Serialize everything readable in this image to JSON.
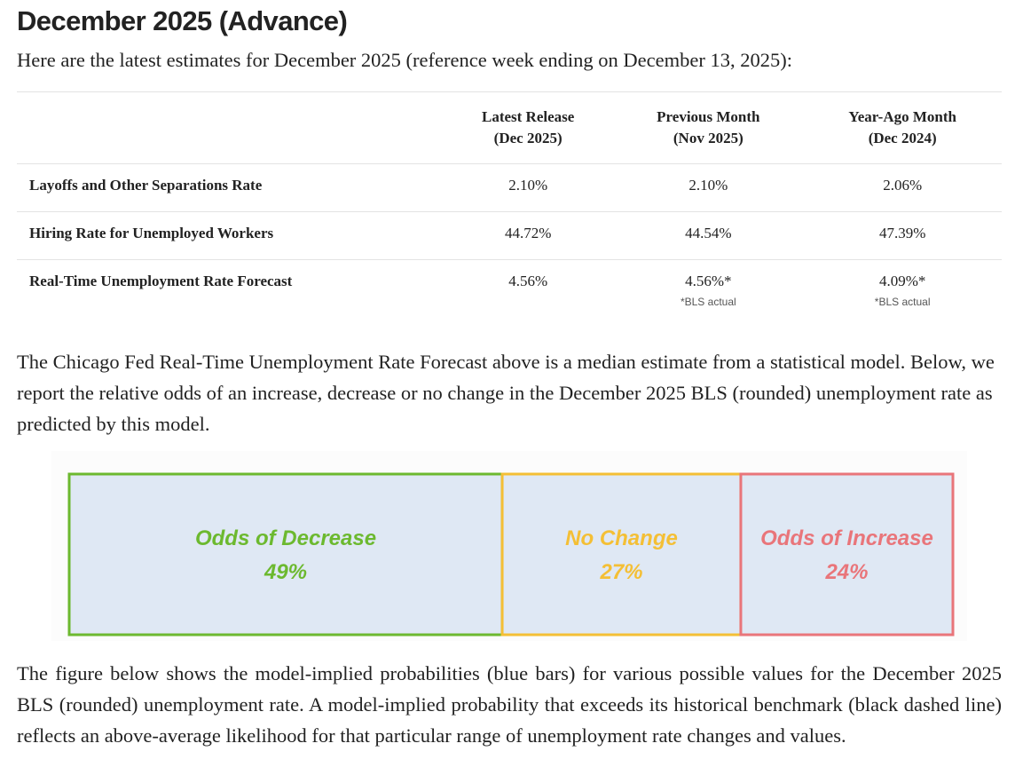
{
  "header": {
    "title": "December 2025 (Advance)",
    "subtitle": "Here are the latest estimates for December 2025 (reference week ending on December 13, 2025):"
  },
  "table": {
    "headers": [
      [
        "Latest Release",
        "(Dec 2025)"
      ],
      [
        "Previous Month",
        "(Nov 2025)"
      ],
      [
        "Year-Ago Month",
        "(Dec 2024)"
      ]
    ],
    "rows": [
      {
        "label": "Layoffs and Other Separations Rate",
        "cells": [
          {
            "text": "2.10%"
          },
          {
            "text": "2.10%"
          },
          {
            "text": "2.06%"
          }
        ]
      },
      {
        "label": "Hiring Rate for Unemployed Workers",
        "cells": [
          {
            "text": "44.72%"
          },
          {
            "text": "44.54%"
          },
          {
            "text": "47.39%"
          }
        ]
      },
      {
        "label": "Real-Time Unemployment Rate Forecast",
        "cells": [
          {
            "text": "4.56%"
          },
          {
            "text": "4.56%*",
            "note": "*BLS actual"
          },
          {
            "text": "4.09%*",
            "note": "*BLS actual"
          }
        ]
      }
    ]
  },
  "paragraphs": [
    "The Chicago Fed Real-Time Unemployment Rate Forecast above is a median estimate from a statistical model. Below, we report the relative odds of an increase, decrease or no change in the December 2025 BLS (rounded) unemployment rate as predicted by this model.",
    "The figure below shows the model-implied probabilities (blue bars) for various possible values for the December 2025 BLS (rounded) unemployment rate. A model-implied probability that exceeds its historical benchmark (black dashed line) reflects an above-average likelihood for that particular range of unemployment rate changes and values."
  ],
  "odds": {
    "labels": [
      "Odds of Decrease",
      "No Change",
      "Odds of Increase"
    ],
    "values": [
      49,
      27,
      24
    ],
    "value_labels": [
      "49%",
      "27%",
      "24%"
    ],
    "colors": [
      "#6cb92f",
      "#f4bf35",
      "#e9757a"
    ],
    "fill": "#dfe8f4"
  }
}
